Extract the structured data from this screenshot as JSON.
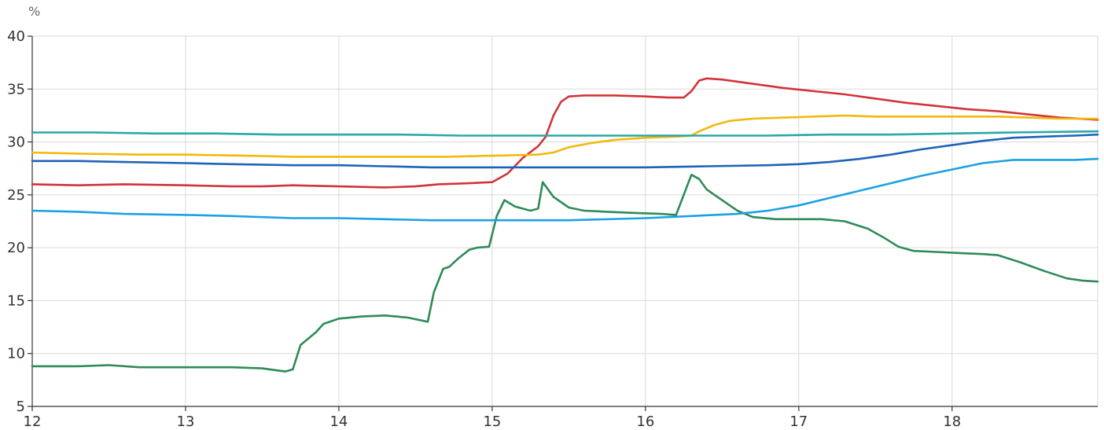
{
  "chart_data": {
    "type": "line",
    "ylabel": "%",
    "xlim": [
      12,
      18.95
    ],
    "ylim": [
      5,
      40
    ],
    "xticks": [
      12,
      13,
      14,
      15,
      16,
      17,
      18
    ],
    "yticks": [
      5,
      10,
      15,
      20,
      25,
      30,
      35,
      40
    ],
    "grid": true,
    "series": [
      {
        "color": "#2e8b57",
        "points": [
          [
            12,
            8.8
          ],
          [
            12.3,
            8.8
          ],
          [
            12.5,
            8.9
          ],
          [
            12.7,
            8.7
          ],
          [
            13,
            8.7
          ],
          [
            13.3,
            8.7
          ],
          [
            13.5,
            8.6
          ],
          [
            13.65,
            8.3
          ],
          [
            13.7,
            8.5
          ],
          [
            13.75,
            10.8
          ],
          [
            13.85,
            12.0
          ],
          [
            13.9,
            12.8
          ],
          [
            14.0,
            13.3
          ],
          [
            14.15,
            13.5
          ],
          [
            14.3,
            13.6
          ],
          [
            14.45,
            13.4
          ],
          [
            14.58,
            13.0
          ],
          [
            14.62,
            15.8
          ],
          [
            14.68,
            18.0
          ],
          [
            14.72,
            18.2
          ],
          [
            14.78,
            19.0
          ],
          [
            14.85,
            19.8
          ],
          [
            14.9,
            20.0
          ],
          [
            14.98,
            20.1
          ],
          [
            15.03,
            23.0
          ],
          [
            15.08,
            24.5
          ],
          [
            15.15,
            23.9
          ],
          [
            15.25,
            23.5
          ],
          [
            15.3,
            23.7
          ],
          [
            15.33,
            26.2
          ],
          [
            15.4,
            24.8
          ],
          [
            15.5,
            23.8
          ],
          [
            15.6,
            23.5
          ],
          [
            15.75,
            23.4
          ],
          [
            15.9,
            23.3
          ],
          [
            16.1,
            23.2
          ],
          [
            16.2,
            23.1
          ],
          [
            16.3,
            26.9
          ],
          [
            16.35,
            26.5
          ],
          [
            16.4,
            25.5
          ],
          [
            16.5,
            24.5
          ],
          [
            16.6,
            23.5
          ],
          [
            16.7,
            22.9
          ],
          [
            16.85,
            22.7
          ],
          [
            17.0,
            22.7
          ],
          [
            17.15,
            22.7
          ],
          [
            17.3,
            22.5
          ],
          [
            17.45,
            21.8
          ],
          [
            17.55,
            21.0
          ],
          [
            17.65,
            20.1
          ],
          [
            17.75,
            19.7
          ],
          [
            17.9,
            19.6
          ],
          [
            18.05,
            19.5
          ],
          [
            18.2,
            19.4
          ],
          [
            18.3,
            19.3
          ],
          [
            18.45,
            18.6
          ],
          [
            18.6,
            17.8
          ],
          [
            18.75,
            17.1
          ],
          [
            18.85,
            16.9
          ],
          [
            18.95,
            16.8
          ]
        ]
      },
      {
        "color": "#1ba1e2",
        "points": [
          [
            12,
            23.5
          ],
          [
            12.3,
            23.4
          ],
          [
            12.6,
            23.2
          ],
          [
            13.0,
            23.1
          ],
          [
            13.3,
            23.0
          ],
          [
            13.7,
            22.8
          ],
          [
            14.0,
            22.8
          ],
          [
            14.3,
            22.7
          ],
          [
            14.6,
            22.6
          ],
          [
            15.0,
            22.6
          ],
          [
            15.5,
            22.6
          ],
          [
            16.0,
            22.8
          ],
          [
            16.3,
            23.0
          ],
          [
            16.6,
            23.2
          ],
          [
            16.8,
            23.5
          ],
          [
            17.0,
            24.0
          ],
          [
            17.2,
            24.7
          ],
          [
            17.4,
            25.4
          ],
          [
            17.6,
            26.1
          ],
          [
            17.8,
            26.8
          ],
          [
            18.0,
            27.4
          ],
          [
            18.2,
            28.0
          ],
          [
            18.4,
            28.3
          ],
          [
            18.6,
            28.3
          ],
          [
            18.8,
            28.3
          ],
          [
            18.95,
            28.4
          ]
        ]
      },
      {
        "color": "#d13438",
        "points": [
          [
            12,
            26.0
          ],
          [
            12.3,
            25.9
          ],
          [
            12.6,
            26.0
          ],
          [
            13.0,
            25.9
          ],
          [
            13.3,
            25.8
          ],
          [
            13.5,
            25.8
          ],
          [
            13.7,
            25.9
          ],
          [
            14.0,
            25.8
          ],
          [
            14.3,
            25.7
          ],
          [
            14.5,
            25.8
          ],
          [
            14.65,
            26.0
          ],
          [
            14.85,
            26.1
          ],
          [
            15.0,
            26.2
          ],
          [
            15.1,
            27.0
          ],
          [
            15.2,
            28.5
          ],
          [
            15.3,
            29.6
          ],
          [
            15.35,
            30.5
          ],
          [
            15.4,
            32.5
          ],
          [
            15.45,
            33.8
          ],
          [
            15.5,
            34.3
          ],
          [
            15.6,
            34.4
          ],
          [
            15.8,
            34.4
          ],
          [
            16.0,
            34.3
          ],
          [
            16.15,
            34.2
          ],
          [
            16.25,
            34.2
          ],
          [
            16.3,
            34.8
          ],
          [
            16.35,
            35.8
          ],
          [
            16.4,
            36.0
          ],
          [
            16.5,
            35.9
          ],
          [
            16.7,
            35.5
          ],
          [
            16.9,
            35.1
          ],
          [
            17.1,
            34.8
          ],
          [
            17.3,
            34.5
          ],
          [
            17.5,
            34.1
          ],
          [
            17.7,
            33.7
          ],
          [
            17.9,
            33.4
          ],
          [
            18.1,
            33.1
          ],
          [
            18.3,
            32.9
          ],
          [
            18.5,
            32.6
          ],
          [
            18.7,
            32.3
          ],
          [
            18.95,
            32.1
          ]
        ]
      },
      {
        "color": "#f2b90c",
        "points": [
          [
            12,
            29.0
          ],
          [
            12.3,
            28.9
          ],
          [
            12.7,
            28.8
          ],
          [
            13.0,
            28.8
          ],
          [
            13.4,
            28.7
          ],
          [
            13.7,
            28.6
          ],
          [
            14.0,
            28.6
          ],
          [
            14.4,
            28.6
          ],
          [
            14.7,
            28.6
          ],
          [
            15.0,
            28.7
          ],
          [
            15.3,
            28.8
          ],
          [
            15.4,
            29.0
          ],
          [
            15.5,
            29.5
          ],
          [
            15.65,
            29.9
          ],
          [
            15.8,
            30.2
          ],
          [
            16.0,
            30.4
          ],
          [
            16.2,
            30.5
          ],
          [
            16.3,
            30.6
          ],
          [
            16.35,
            31.0
          ],
          [
            16.45,
            31.6
          ],
          [
            16.55,
            32.0
          ],
          [
            16.7,
            32.2
          ],
          [
            16.9,
            32.3
          ],
          [
            17.1,
            32.4
          ],
          [
            17.3,
            32.5
          ],
          [
            17.5,
            32.4
          ],
          [
            17.7,
            32.4
          ],
          [
            17.9,
            32.4
          ],
          [
            18.1,
            32.4
          ],
          [
            18.3,
            32.4
          ],
          [
            18.5,
            32.3
          ],
          [
            18.7,
            32.2
          ],
          [
            18.95,
            32.2
          ]
        ]
      },
      {
        "color": "#1e63b8",
        "points": [
          [
            12,
            28.2
          ],
          [
            12.3,
            28.2
          ],
          [
            12.6,
            28.1
          ],
          [
            13.0,
            28.0
          ],
          [
            13.3,
            27.9
          ],
          [
            13.7,
            27.8
          ],
          [
            14.0,
            27.8
          ],
          [
            14.3,
            27.7
          ],
          [
            14.6,
            27.6
          ],
          [
            15.0,
            27.6
          ],
          [
            15.5,
            27.6
          ],
          [
            16.0,
            27.6
          ],
          [
            16.4,
            27.7
          ],
          [
            16.8,
            27.8
          ],
          [
            17.0,
            27.9
          ],
          [
            17.2,
            28.1
          ],
          [
            17.4,
            28.4
          ],
          [
            17.6,
            28.8
          ],
          [
            17.8,
            29.3
          ],
          [
            18.0,
            29.7
          ],
          [
            18.2,
            30.1
          ],
          [
            18.4,
            30.4
          ],
          [
            18.6,
            30.5
          ],
          [
            18.8,
            30.6
          ],
          [
            18.95,
            30.7
          ]
        ]
      },
      {
        "color": "#2aa7a7",
        "points": [
          [
            12,
            30.9
          ],
          [
            12.4,
            30.9
          ],
          [
            12.8,
            30.8
          ],
          [
            13.2,
            30.8
          ],
          [
            13.6,
            30.7
          ],
          [
            14.0,
            30.7
          ],
          [
            14.4,
            30.7
          ],
          [
            14.8,
            30.6
          ],
          [
            15.2,
            30.6
          ],
          [
            15.6,
            30.6
          ],
          [
            16.0,
            30.6
          ],
          [
            16.4,
            30.6
          ],
          [
            16.8,
            30.6
          ],
          [
            17.2,
            30.7
          ],
          [
            17.6,
            30.7
          ],
          [
            18.0,
            30.8
          ],
          [
            18.4,
            30.9
          ],
          [
            18.95,
            31.0
          ]
        ]
      }
    ]
  }
}
